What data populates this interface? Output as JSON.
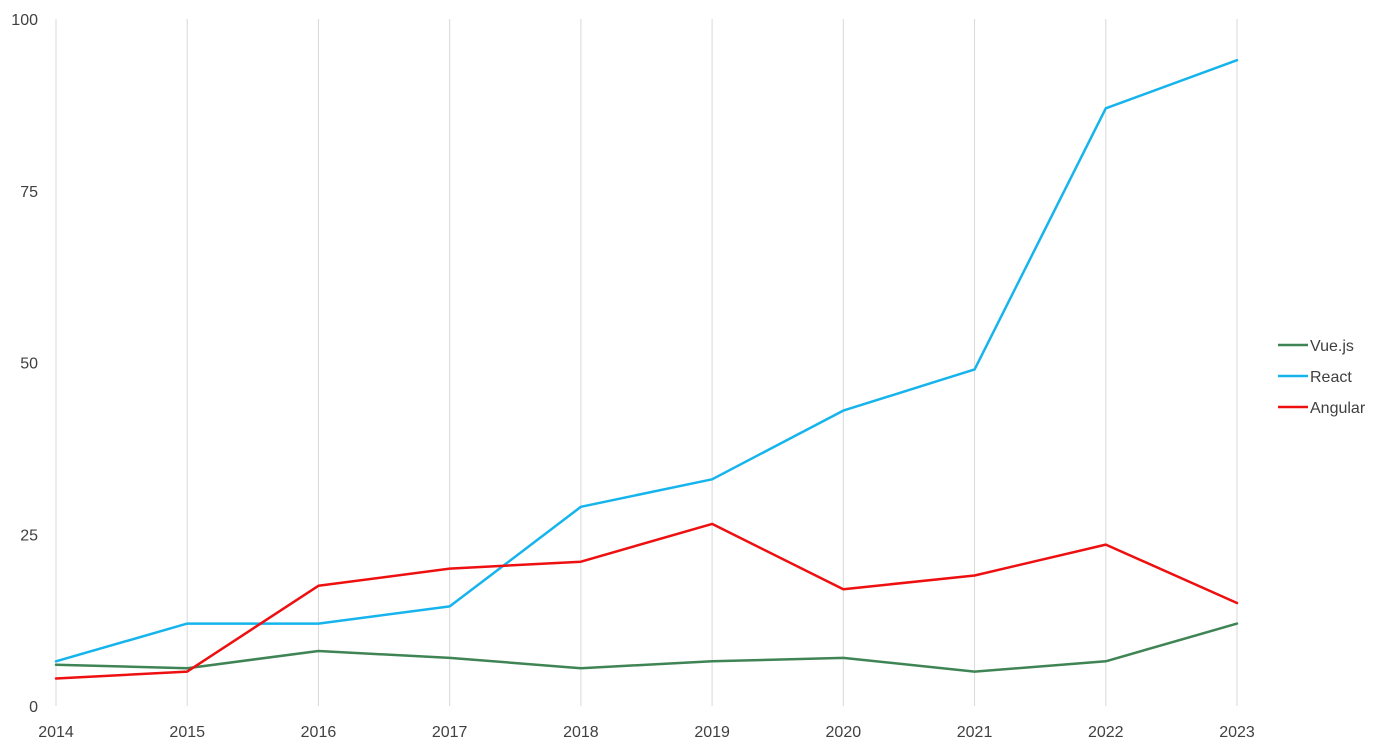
{
  "chart_data": {
    "type": "line",
    "title": "",
    "xlabel": "",
    "ylabel": "",
    "categories": [
      "2014",
      "2015",
      "2016",
      "2017",
      "2018",
      "2019",
      "2020",
      "2021",
      "2022",
      "2023"
    ],
    "ylim": [
      0,
      100
    ],
    "y_ticks": [
      "0",
      "25",
      "50",
      "75",
      "100"
    ],
    "grid": "vertical",
    "legend_position": "right",
    "series": [
      {
        "name": "Vue.js",
        "color": "#3f8454",
        "values": [
          6,
          5.5,
          8,
          7,
          5.5,
          6.5,
          7,
          5,
          6.5,
          12
        ]
      },
      {
        "name": "React",
        "color": "#16b4ec",
        "values": [
          6.5,
          12,
          12,
          14.5,
          29,
          33,
          43,
          49,
          87,
          94
        ]
      },
      {
        "name": "Angular",
        "color": "#ee1010",
        "values": [
          4,
          5,
          17.5,
          20,
          21,
          26.5,
          17,
          19,
          23.5,
          15
        ]
      }
    ]
  }
}
